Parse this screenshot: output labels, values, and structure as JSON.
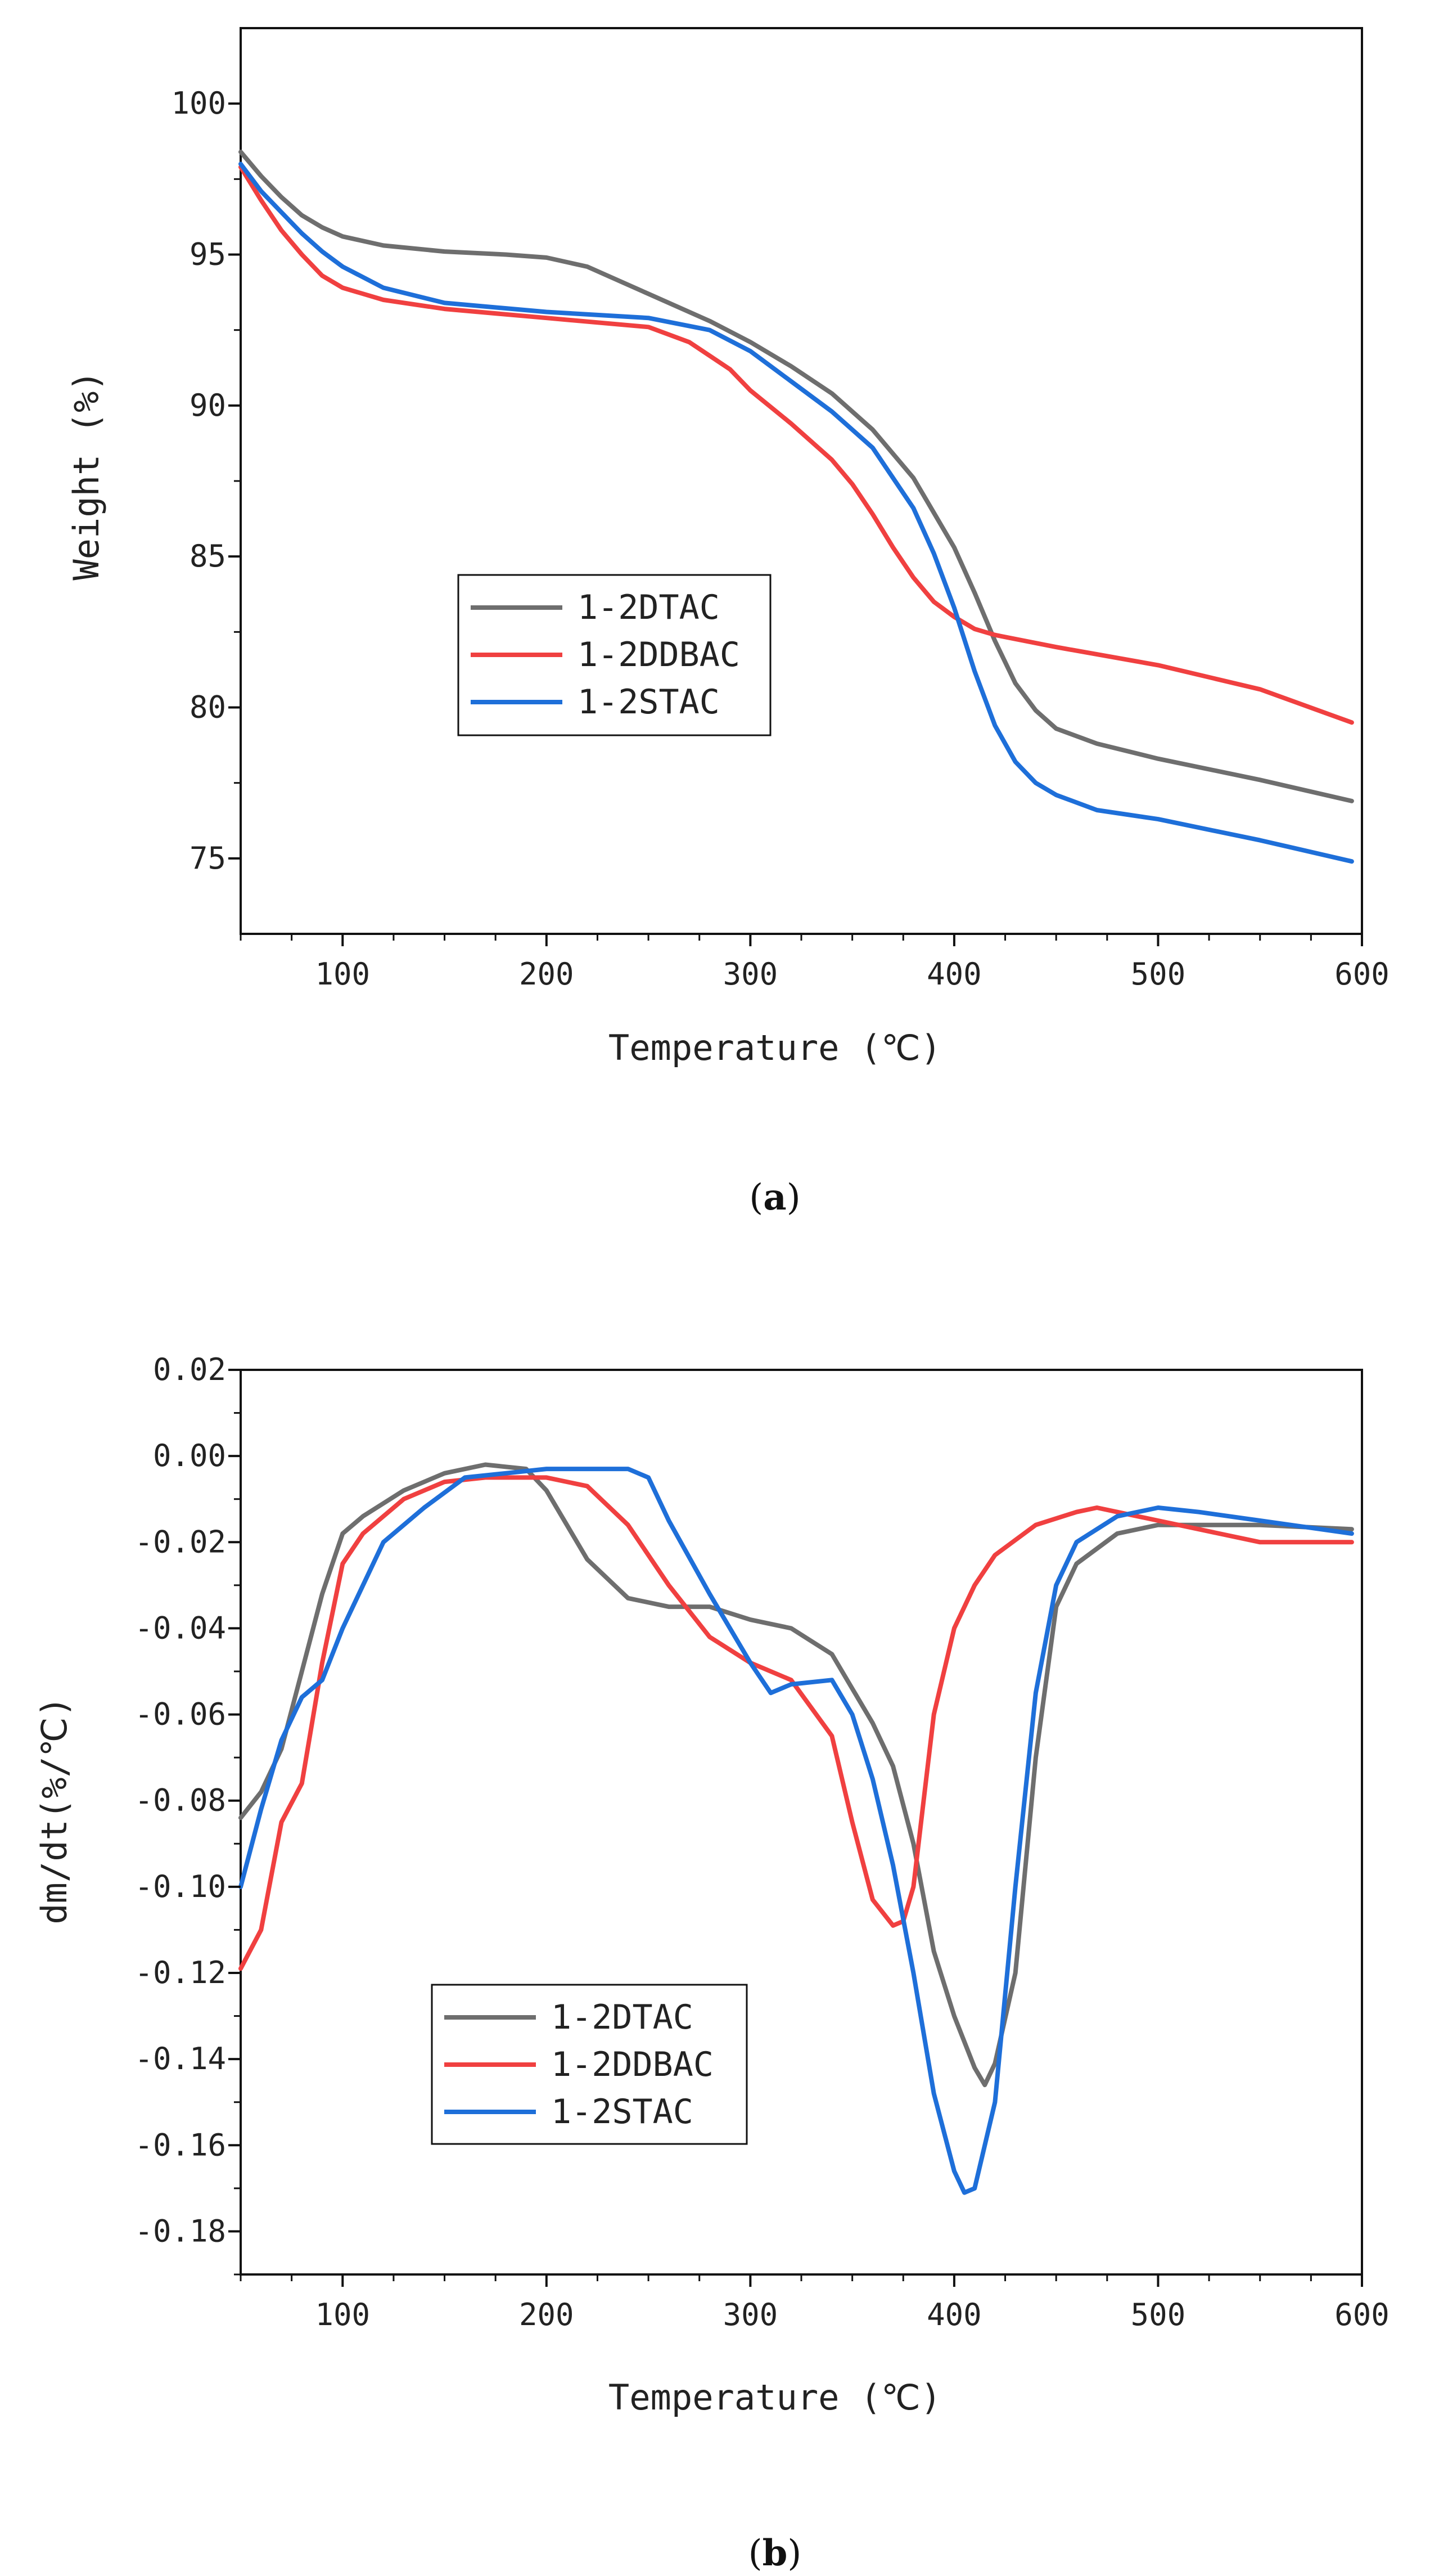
{
  "chart_data": [
    {
      "type": "line",
      "caption_open": "(",
      "caption_letter": "a",
      "caption_close": ")",
      "xlabel": "Temperature (℃)",
      "ylabel": "Weight (%)",
      "xlim": [
        50,
        600
      ],
      "ylim": [
        72.5,
        102.5
      ],
      "x_ticks": [
        100,
        200,
        300,
        400,
        500,
        600
      ],
      "y_ticks": [
        75,
        80,
        85,
        90,
        95,
        100
      ],
      "x_tick_labels": [
        "100",
        "200",
        "300",
        "400",
        "500",
        "600"
      ],
      "y_tick_labels": [
        "75",
        "80",
        "85",
        "90",
        "95",
        "100"
      ],
      "legend": {
        "position": "middle-left",
        "entries": [
          "1-2DTAC",
          "1-2DDBAC",
          "1-2STAC"
        ]
      },
      "series": [
        {
          "name": "1-2DTAC",
          "color": "#6e6e6e",
          "x": [
            50,
            60,
            70,
            80,
            90,
            100,
            120,
            150,
            180,
            200,
            220,
            250,
            280,
            300,
            320,
            340,
            360,
            380,
            400,
            410,
            420,
            430,
            440,
            450,
            470,
            500,
            550,
            595
          ],
          "y": [
            98.4,
            97.6,
            96.9,
            96.3,
            95.9,
            95.6,
            95.3,
            95.1,
            95.0,
            94.9,
            94.6,
            93.7,
            92.8,
            92.1,
            91.3,
            90.4,
            89.2,
            87.6,
            85.3,
            83.8,
            82.2,
            80.8,
            79.9,
            79.3,
            78.8,
            78.3,
            77.6,
            76.9
          ]
        },
        {
          "name": "1-2DDBAC",
          "color": "#f04040",
          "x": [
            50,
            60,
            70,
            80,
            90,
            100,
            120,
            150,
            200,
            250,
            270,
            290,
            300,
            320,
            340,
            350,
            360,
            370,
            380,
            390,
            400,
            410,
            420,
            450,
            500,
            550,
            595
          ],
          "y": [
            97.9,
            96.8,
            95.8,
            95.0,
            94.3,
            93.9,
            93.5,
            93.2,
            92.9,
            92.6,
            92.1,
            91.2,
            90.5,
            89.4,
            88.2,
            87.4,
            86.4,
            85.3,
            84.3,
            83.5,
            83.0,
            82.6,
            82.4,
            82.0,
            81.4,
            80.6,
            79.5
          ]
        },
        {
          "name": "1-2STAC",
          "color": "#1e6fd9",
          "x": [
            50,
            60,
            70,
            80,
            90,
            100,
            120,
            150,
            200,
            250,
            280,
            300,
            320,
            340,
            360,
            380,
            390,
            400,
            410,
            420,
            430,
            440,
            450,
            470,
            500,
            550,
            595
          ],
          "y": [
            98.0,
            97.1,
            96.4,
            95.7,
            95.1,
            94.6,
            93.9,
            93.4,
            93.1,
            92.9,
            92.5,
            91.8,
            90.8,
            89.8,
            88.6,
            86.6,
            85.1,
            83.3,
            81.2,
            79.4,
            78.2,
            77.5,
            77.1,
            76.6,
            76.3,
            75.6,
            74.9
          ]
        }
      ]
    },
    {
      "type": "line",
      "caption_open": "(",
      "caption_letter": "b",
      "caption_close": ")",
      "xlabel": "Temperature (℃)",
      "ylabel": "dm/dt(%/℃)",
      "xlim": [
        50,
        600
      ],
      "ylim": [
        -0.19,
        0.02
      ],
      "x_ticks": [
        100,
        200,
        300,
        400,
        500,
        600
      ],
      "y_ticks": [
        0.02,
        0.0,
        -0.02,
        -0.04,
        -0.06,
        -0.08,
        -0.1,
        -0.12,
        -0.14,
        -0.16,
        -0.18
      ],
      "x_tick_labels": [
        "100",
        "200",
        "300",
        "400",
        "500",
        "600"
      ],
      "y_tick_labels": [
        "0.02",
        "0.00",
        "-0.02",
        "-0.04",
        "-0.06",
        "-0.08",
        "-0.10",
        "-0.12",
        "-0.14",
        "-0.16",
        "-0.18"
      ],
      "legend": {
        "position": "bottom-left",
        "entries": [
          "1-2DTAC",
          "1-2DDBAC",
          "1-2STAC"
        ]
      },
      "series": [
        {
          "name": "1-2DTAC",
          "color": "#6e6e6e",
          "x": [
            50,
            60,
            70,
            80,
            90,
            100,
            110,
            130,
            150,
            170,
            190,
            200,
            210,
            220,
            240,
            260,
            280,
            300,
            320,
            340,
            350,
            360,
            370,
            380,
            390,
            400,
            410,
            415,
            420,
            430,
            440,
            450,
            460,
            480,
            500,
            550,
            595
          ],
          "y": [
            -0.084,
            -0.078,
            -0.068,
            -0.05,
            -0.032,
            -0.018,
            -0.014,
            -0.008,
            -0.004,
            -0.002,
            -0.003,
            -0.008,
            -0.016,
            -0.024,
            -0.033,
            -0.035,
            -0.035,
            -0.038,
            -0.04,
            -0.046,
            -0.054,
            -0.062,
            -0.072,
            -0.09,
            -0.115,
            -0.13,
            -0.142,
            -0.146,
            -0.141,
            -0.12,
            -0.07,
            -0.035,
            -0.025,
            -0.018,
            -0.016,
            -0.016,
            -0.017
          ]
        },
        {
          "name": "1-2DDBAC",
          "color": "#f04040",
          "x": [
            50,
            60,
            70,
            80,
            90,
            100,
            110,
            130,
            150,
            170,
            200,
            220,
            240,
            260,
            280,
            300,
            320,
            340,
            350,
            360,
            370,
            375,
            380,
            385,
            390,
            400,
            410,
            420,
            440,
            460,
            470,
            480,
            500,
            550,
            595
          ],
          "y": [
            -0.119,
            -0.11,
            -0.085,
            -0.076,
            -0.048,
            -0.025,
            -0.018,
            -0.01,
            -0.006,
            -0.005,
            -0.005,
            -0.007,
            -0.016,
            -0.03,
            -0.042,
            -0.048,
            -0.052,
            -0.065,
            -0.085,
            -0.103,
            -0.109,
            -0.108,
            -0.1,
            -0.08,
            -0.06,
            -0.04,
            -0.03,
            -0.023,
            -0.016,
            -0.013,
            -0.012,
            -0.013,
            -0.015,
            -0.02,
            -0.02
          ]
        },
        {
          "name": "1-2STAC",
          "color": "#1e6fd9",
          "x": [
            50,
            60,
            70,
            80,
            90,
            100,
            120,
            140,
            160,
            180,
            200,
            220,
            240,
            250,
            260,
            280,
            300,
            310,
            320,
            340,
            350,
            360,
            370,
            380,
            390,
            400,
            405,
            410,
            420,
            430,
            440,
            450,
            460,
            480,
            500,
            520,
            550,
            595
          ],
          "y": [
            -0.1,
            -0.082,
            -0.066,
            -0.056,
            -0.052,
            -0.04,
            -0.02,
            -0.012,
            -0.005,
            -0.004,
            -0.003,
            -0.003,
            -0.003,
            -0.005,
            -0.015,
            -0.032,
            -0.048,
            -0.055,
            -0.053,
            -0.052,
            -0.06,
            -0.075,
            -0.095,
            -0.12,
            -0.148,
            -0.166,
            -0.171,
            -0.17,
            -0.15,
            -0.1,
            -0.055,
            -0.03,
            -0.02,
            -0.014,
            -0.012,
            -0.013,
            -0.015,
            -0.018
          ]
        }
      ]
    }
  ]
}
